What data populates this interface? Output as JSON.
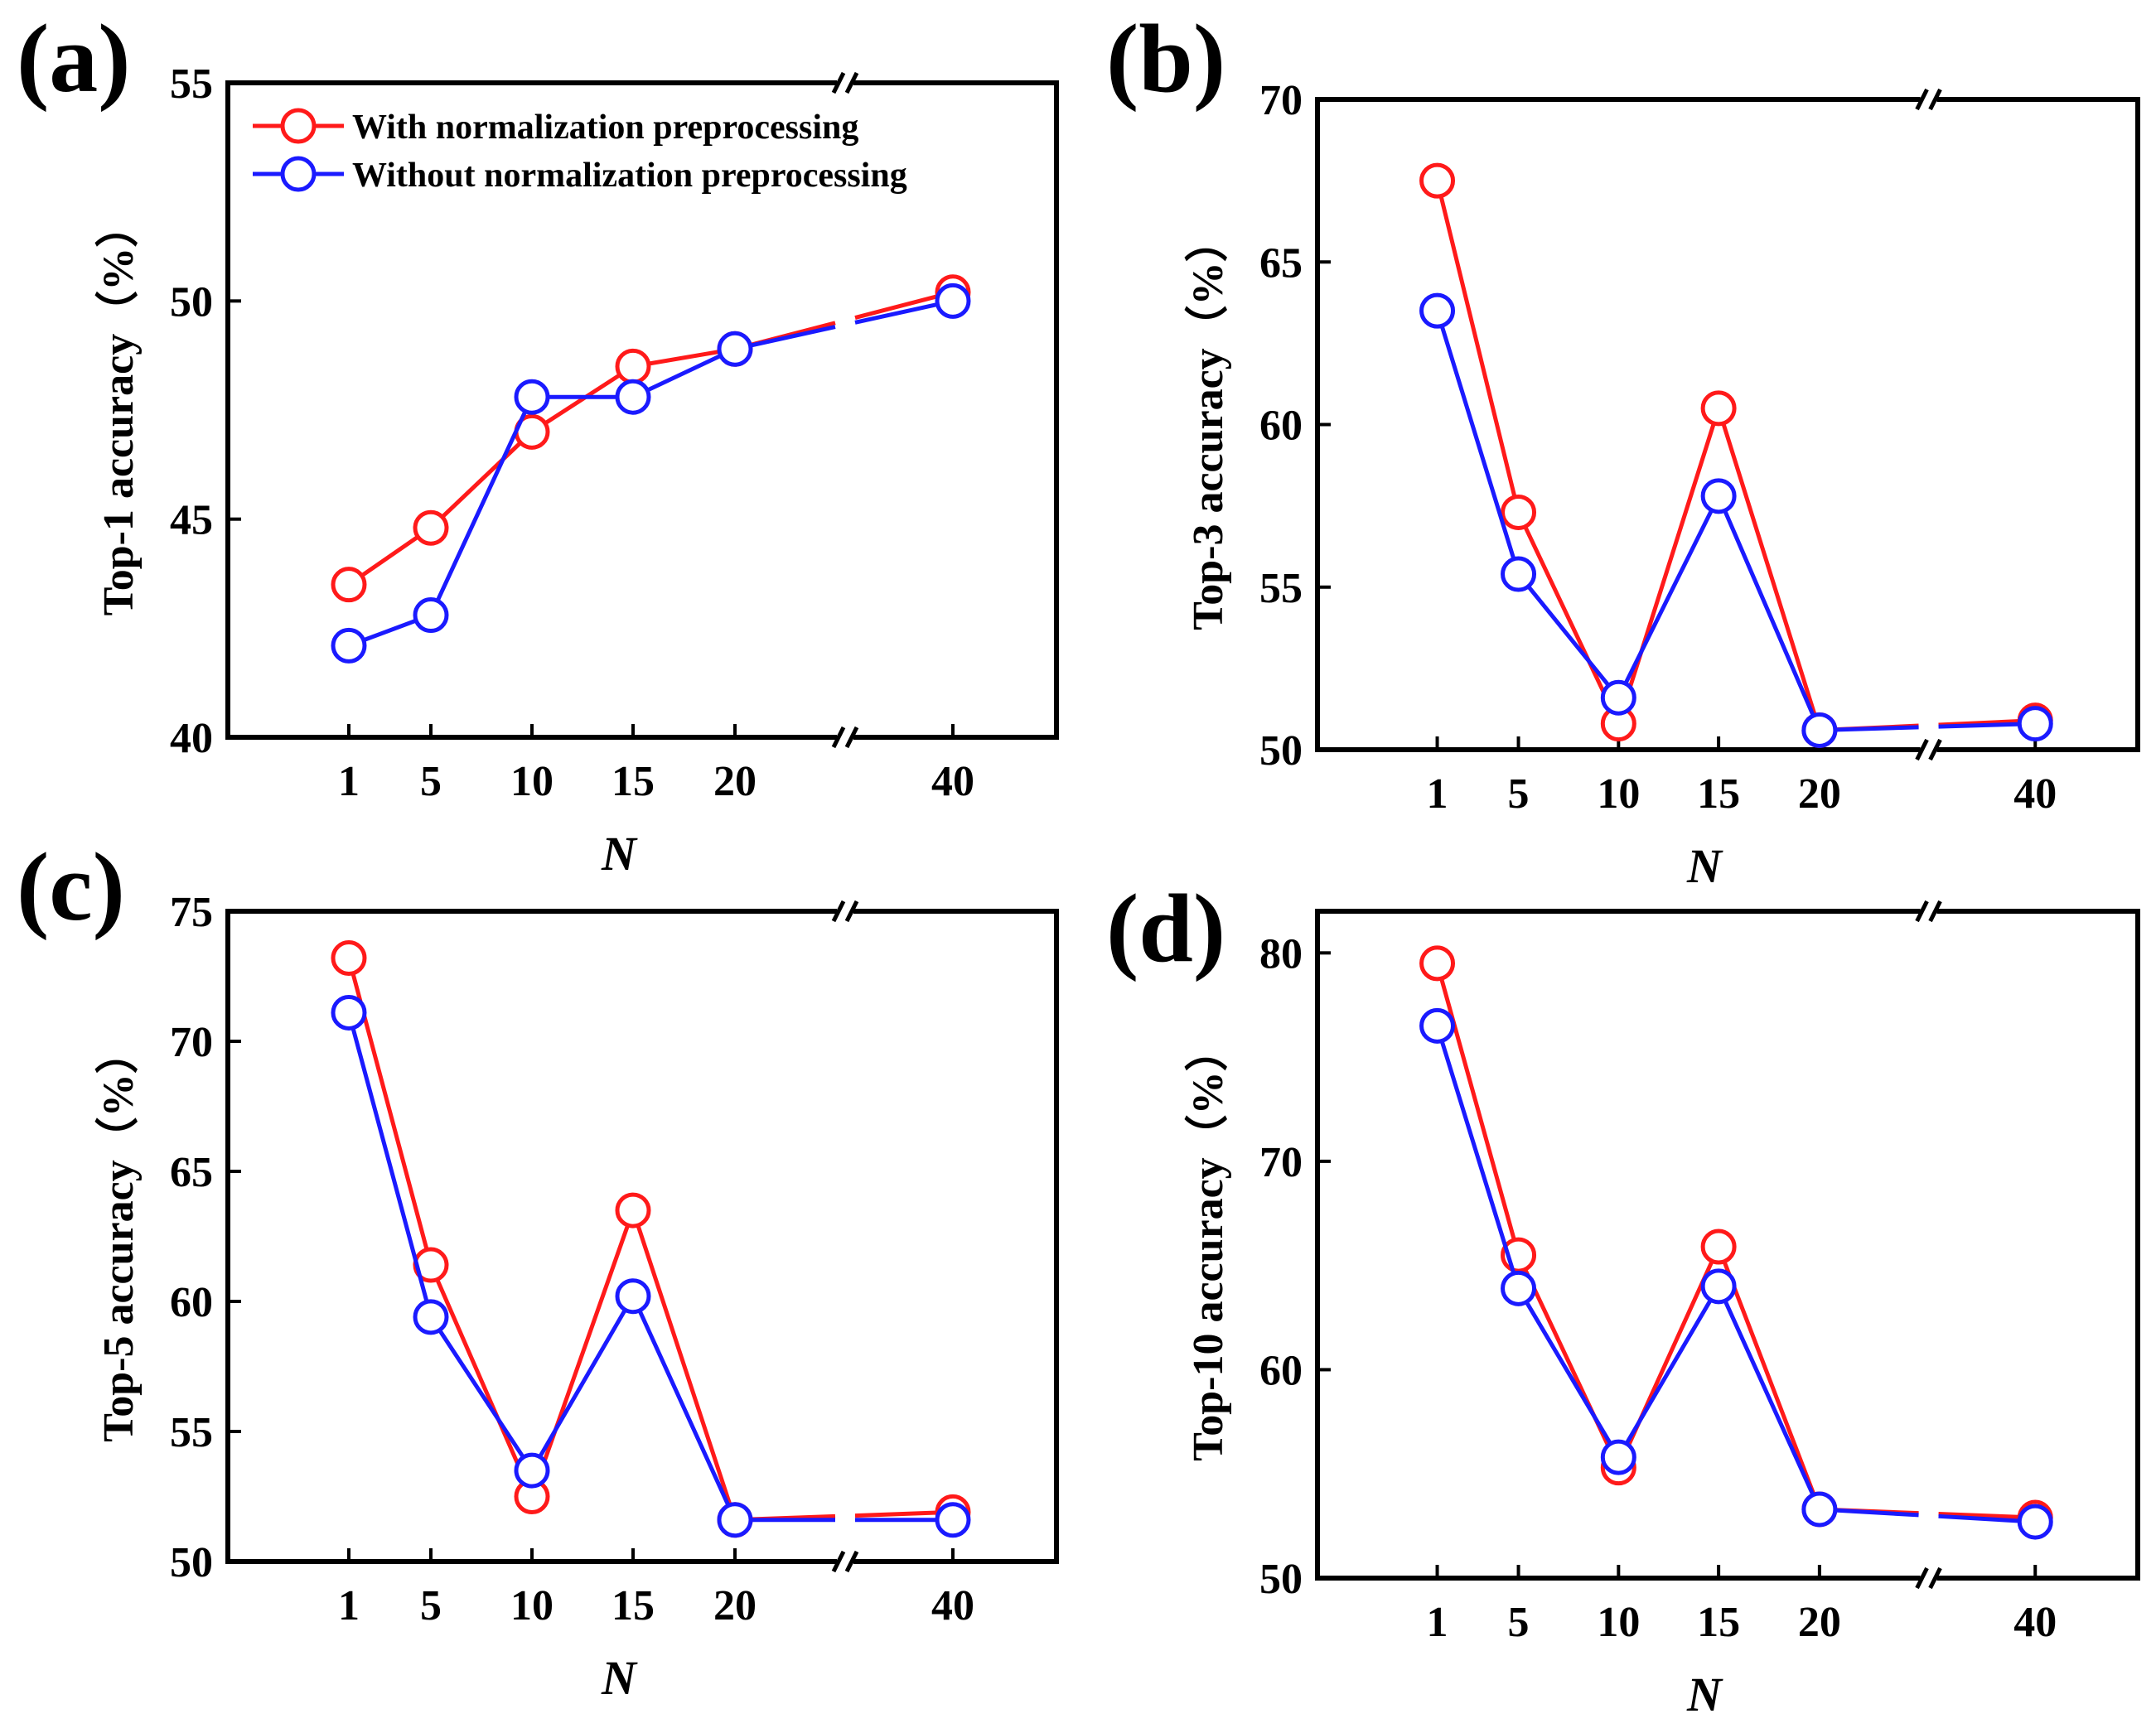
{
  "figure": {
    "legend": [
      {
        "label": "With normalization preprocessing",
        "color": "#ff1a1a"
      },
      {
        "label": "Without normalization preprocessing",
        "color": "#1a1aff"
      }
    ]
  },
  "chart_data": [
    {
      "type": "line",
      "panel": "(a)",
      "xlabel": "N",
      "ylabel": "Top-1 accuracy（%）",
      "categories": [
        "1",
        "5",
        "10",
        "15",
        "20",
        "40"
      ],
      "x": [
        1,
        5,
        10,
        15,
        20,
        40
      ],
      "ylim": [
        40,
        55
      ],
      "yticks": [
        40,
        45,
        50,
        55
      ],
      "axis_break": "between 20 and 40",
      "legend": true,
      "series": [
        {
          "name": "With normalization preprocessing",
          "color": "#ff1a1a",
          "values": [
            43.5,
            44.8,
            47.0,
            48.5,
            48.9,
            50.2
          ]
        },
        {
          "name": "Without normalization preprocessing",
          "color": "#1a1aff",
          "values": [
            42.1,
            42.8,
            47.8,
            47.8,
            48.9,
            50.0
          ]
        }
      ]
    },
    {
      "type": "line",
      "panel": "(b)",
      "xlabel": "N",
      "ylabel": "Top-3 accuracy（%）",
      "categories": [
        "1",
        "5",
        "10",
        "15",
        "20",
        "40"
      ],
      "x": [
        1,
        5,
        10,
        15,
        20,
        40
      ],
      "ylim": [
        50,
        70
      ],
      "yticks": [
        50,
        55,
        60,
        65,
        70
      ],
      "axis_break": "between 20 and 40",
      "legend": false,
      "series": [
        {
          "name": "With normalization preprocessing",
          "color": "#ff1a1a",
          "values": [
            67.5,
            57.3,
            50.8,
            60.5,
            50.6,
            50.9
          ]
        },
        {
          "name": "Without normalization preprocessing",
          "color": "#1a1aff",
          "values": [
            63.5,
            55.4,
            51.6,
            57.8,
            50.6,
            50.8
          ]
        }
      ]
    },
    {
      "type": "line",
      "panel": "(c)",
      "xlabel": "N",
      "ylabel": "Top-5 accuracy（%）",
      "categories": [
        "1",
        "5",
        "10",
        "15",
        "20",
        "40"
      ],
      "x": [
        1,
        5,
        10,
        15,
        20,
        40
      ],
      "ylim": [
        50,
        75
      ],
      "yticks": [
        50,
        55,
        60,
        65,
        70,
        75
      ],
      "axis_break": "between 20 and 40",
      "legend": false,
      "series": [
        {
          "name": "With normalization preprocessing",
          "color": "#ff1a1a",
          "values": [
            73.2,
            61.4,
            52.5,
            63.5,
            51.6,
            51.9
          ]
        },
        {
          "name": "Without normalization preprocessing",
          "color": "#1a1aff",
          "values": [
            71.1,
            59.4,
            53.5,
            60.2,
            51.6,
            51.6
          ]
        }
      ]
    },
    {
      "type": "line",
      "panel": "(d)",
      "xlabel": "N",
      "ylabel": "Top-10 accuracy（%）",
      "categories": [
        "1",
        "5",
        "10",
        "15",
        "20",
        "40"
      ],
      "x": [
        1,
        5,
        10,
        15,
        20,
        40
      ],
      "ylim": [
        50,
        82
      ],
      "yticks": [
        50,
        60,
        70,
        80
      ],
      "axis_break": "between 20 and 40",
      "legend": false,
      "series": [
        {
          "name": "With normalization preprocessing",
          "color": "#ff1a1a",
          "values": [
            79.5,
            65.5,
            55.3,
            65.9,
            53.3,
            52.9
          ]
        },
        {
          "name": "Without normalization preprocessing",
          "color": "#1a1aff",
          "values": [
            76.5,
            63.9,
            55.8,
            64.0,
            53.3,
            52.7
          ]
        }
      ]
    }
  ]
}
